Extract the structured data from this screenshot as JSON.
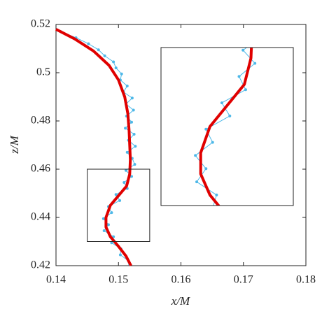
{
  "chart_data": {
    "type": "line",
    "x_label": "x/M",
    "y_label": "z/M",
    "xlim": [
      0.14,
      0.18
    ],
    "ylim": [
      0.42,
      0.52
    ],
    "xticks": [
      0.14,
      0.15,
      0.16,
      0.17,
      0.18
    ],
    "yticks": [
      0.42,
      0.44,
      0.46,
      0.48,
      0.5,
      0.52
    ],
    "zoom_xlim": [
      0.145,
      0.155
    ],
    "zoom_ylim": [
      0.43,
      0.46
    ],
    "series": [
      {
        "color": "#4db8e8",
        "markers": true,
        "x": [
          0.1408,
          0.1432,
          0.1452,
          0.1468,
          0.1478,
          0.1492,
          0.1496,
          0.1505,
          0.1503,
          0.1514,
          0.1508,
          0.1522,
          0.1512,
          0.1524,
          0.1513,
          0.1521,
          0.1511,
          0.1525,
          0.1516,
          0.1527,
          0.1514,
          0.1522,
          0.1526,
          0.1512,
          0.1521,
          0.1509,
          0.1514,
          0.1496,
          0.1502,
          0.1484,
          0.1489,
          0.1476,
          0.1484,
          0.1477,
          0.1492,
          0.1489,
          0.1504,
          0.1503,
          0.1516,
          0.1518
        ],
        "values": [
          0.517,
          0.5145,
          0.512,
          0.5095,
          0.507,
          0.5045,
          0.502,
          0.4995,
          0.497,
          0.4945,
          0.492,
          0.4895,
          0.487,
          0.4845,
          0.482,
          0.4795,
          0.477,
          0.4745,
          0.472,
          0.4695,
          0.467,
          0.4645,
          0.462,
          0.4595,
          0.457,
          0.4545,
          0.452,
          0.4495,
          0.447,
          0.4445,
          0.442,
          0.4395,
          0.437,
          0.4345,
          0.432,
          0.4295,
          0.427,
          0.4245,
          0.422,
          0.4205
        ]
      },
      {
        "color": "#e00000",
        "markers": false,
        "x": [
          0.14,
          0.143,
          0.146,
          0.1485,
          0.15,
          0.151,
          0.1515,
          0.1517,
          0.1518,
          0.1519,
          0.1518,
          0.1513,
          0.15,
          0.1487,
          0.148,
          0.148,
          0.1487,
          0.15,
          0.1512,
          0.152
        ],
        "values": [
          0.518,
          0.514,
          0.509,
          0.503,
          0.497,
          0.49,
          0.483,
          0.476,
          0.47,
          0.464,
          0.458,
          0.453,
          0.449,
          0.445,
          0.44,
          0.436,
          0.432,
          0.428,
          0.424,
          0.42
        ]
      }
    ]
  }
}
